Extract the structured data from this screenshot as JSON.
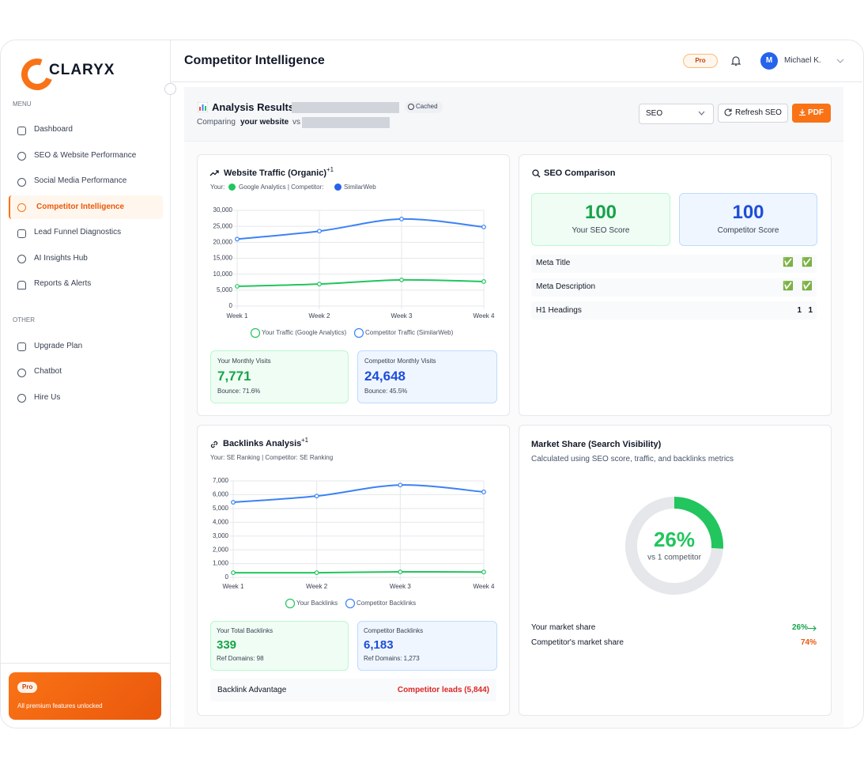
{
  "sidebar": {
    "logo": "CLARYX",
    "menu_label": "MENU",
    "menu": [
      "Dashboard",
      "SEO & Website Performance",
      "Social Media Performance",
      "Competitor Intelligence",
      "Lead Funnel Diagnostics",
      "AI Insights Hub",
      "Reports & Alerts"
    ],
    "other_label": "OTHER",
    "other": [
      "Upgrade Plan",
      "Chatbot",
      "Hire Us"
    ],
    "pro_badge": "Pro",
    "pro_text": "All premium features unlocked"
  },
  "header": {
    "title": "Competitor Intelligence",
    "badge": "Pro",
    "user_initial": "M",
    "user_name": "Michael K."
  },
  "analysis": {
    "title": "Analysis Results:",
    "cached": "Cached",
    "comparing": "Comparing",
    "your_site": "your website",
    "vs": "vs",
    "select": "SEO",
    "refresh": "Refresh SEO",
    "pdf": "PDF"
  },
  "traffic_stats": {
    "your_label": "Your Monthly Visits",
    "your_value": "7,771",
    "your_note": "Bounce: 71.6%",
    "comp_label": "Competitor Monthly Visits",
    "comp_value": "24,648",
    "comp_note": "Bounce: 45.5%"
  },
  "backlink_stats": {
    "your_label": "Your Total Backlinks",
    "your_value": "339",
    "your_note": "Ref Domains: 98",
    "comp_label": "Competitor Backlinks",
    "comp_value": "6,183",
    "comp_note": "Ref Domains: 1,273",
    "advantage_label": "Backlink Advantage",
    "advantage_value": "Competitor leads (5,844)"
  },
  "seo": {
    "title": "SEO Comparison",
    "your_score": "100",
    "your_label": "Your SEO Score",
    "comp_score": "100",
    "comp_label": "Competitor Score",
    "rows": [
      [
        "Meta Title",
        "✅",
        "✅"
      ],
      [
        "Meta Description",
        "✅",
        "✅"
      ],
      [
        "H1 Headings",
        "1",
        "1"
      ]
    ]
  },
  "chart_data": [
    {
      "type": "line",
      "title": "Website Traffic (Organic)",
      "badge": "+1",
      "sources": [
        "Your:",
        "Google Analytics | Competitor:",
        "SimilarWeb"
      ],
      "categories": [
        "Week 1",
        "Week 2",
        "Week 3",
        "Week 4"
      ],
      "series": [
        {
          "name": "Your Traffic (Google Analytics)",
          "color": "#22c55e",
          "values": [
            6200,
            6900,
            8200,
            7700
          ]
        },
        {
          "name": "Competitor Traffic (SimilarWeb)",
          "color": "#3b82f6",
          "values": [
            21000,
            23500,
            27300,
            24800
          ]
        }
      ],
      "ylim": [
        0,
        30000
      ],
      "yticks": [
        0,
        {
          "value": 5000,
          "label": "5,000"
        },
        {
          "value": 10000,
          "label": "10,000"
        },
        {
          "value": 15000,
          "label": "15,000"
        },
        {
          "value": 20000,
          "label": "20,000"
        },
        {
          "value": 25000,
          "label": "25,000"
        },
        {
          "value": 30000,
          "label": "30,000"
        }
      ],
      "grid": true
    },
    {
      "type": "line",
      "title": "Backlinks Analysis",
      "badge": "+1",
      "sources": [
        "Your: SE Ranking | Competitor: SE Ranking"
      ],
      "categories": [
        "Week 1",
        "Week 2",
        "Week 3",
        "Week 4"
      ],
      "series": [
        {
          "name": "Your Backlinks",
          "color": "#22c55e",
          "values": [
            340,
            340,
            400,
            390
          ]
        },
        {
          "name": "Competitor Backlinks",
          "color": "#3b82f6",
          "values": [
            5450,
            5900,
            6700,
            6200
          ]
        }
      ],
      "ylim": [
        0,
        7000
      ],
      "yticks": [
        0,
        {
          "value": 1000,
          "label": "1,000"
        },
        {
          "value": 2000,
          "label": "2,000"
        },
        {
          "value": 3000,
          "label": "3,000"
        },
        {
          "value": 4000,
          "label": "4,000"
        },
        {
          "value": 5000,
          "label": "5,000"
        },
        {
          "value": 6000,
          "label": "6,000"
        },
        {
          "value": 7000,
          "label": "7,000"
        }
      ],
      "grid": true
    },
    {
      "type": "pie",
      "title": "Market Share (Search Visibility)",
      "subtitle": "Calculated using SEO score, traffic, and backlinks metrics",
      "categories": [
        "Your market share",
        "Competitor's market share"
      ],
      "values": [
        26,
        74
      ],
      "value_labels": [
        "26%",
        "74%"
      ],
      "colors": [
        "#22c55e",
        "#e5e7eb"
      ],
      "center_note": "vs 1 competitor"
    }
  ]
}
